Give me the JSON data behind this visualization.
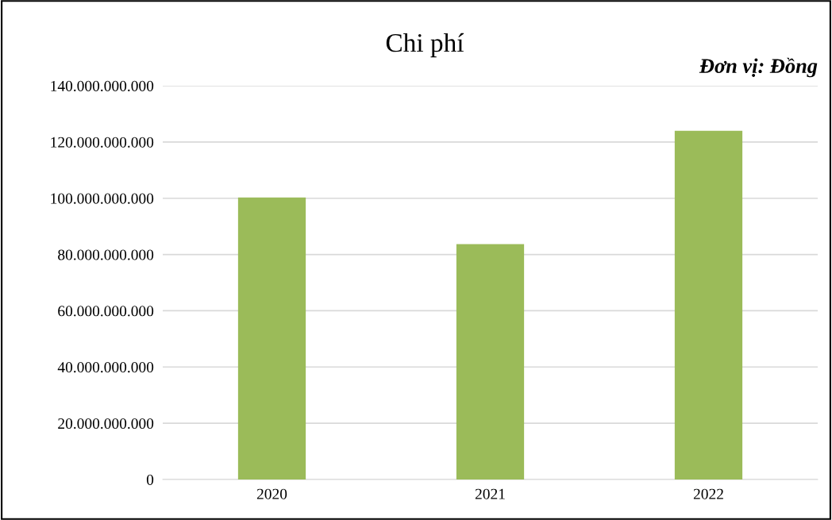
{
  "chart_data": {
    "type": "bar",
    "title": "Chi phí",
    "annotations": [
      "Đơn vị: Đồng"
    ],
    "categories": [
      "2020",
      "2021",
      "2022"
    ],
    "values": [
      100300000000,
      83700000000,
      124000000000
    ],
    "color": "#9bbb59",
    "ylim": [
      0,
      140000000000
    ],
    "yticks": [
      {
        "value": 0,
        "label": "0"
      },
      {
        "value": 20000000000,
        "label": "20.000.000.000"
      },
      {
        "value": 40000000000,
        "label": "40.000.000.000"
      },
      {
        "value": 60000000000,
        "label": "60.000.000.000"
      },
      {
        "value": 80000000000,
        "label": "80.000.000.000"
      },
      {
        "value": 100000000000,
        "label": "100.000.000.000"
      },
      {
        "value": 120000000000,
        "label": "120.000.000.000"
      },
      {
        "value": 140000000000,
        "label": "140.000.000.000"
      }
    ],
    "grid": "y"
  }
}
